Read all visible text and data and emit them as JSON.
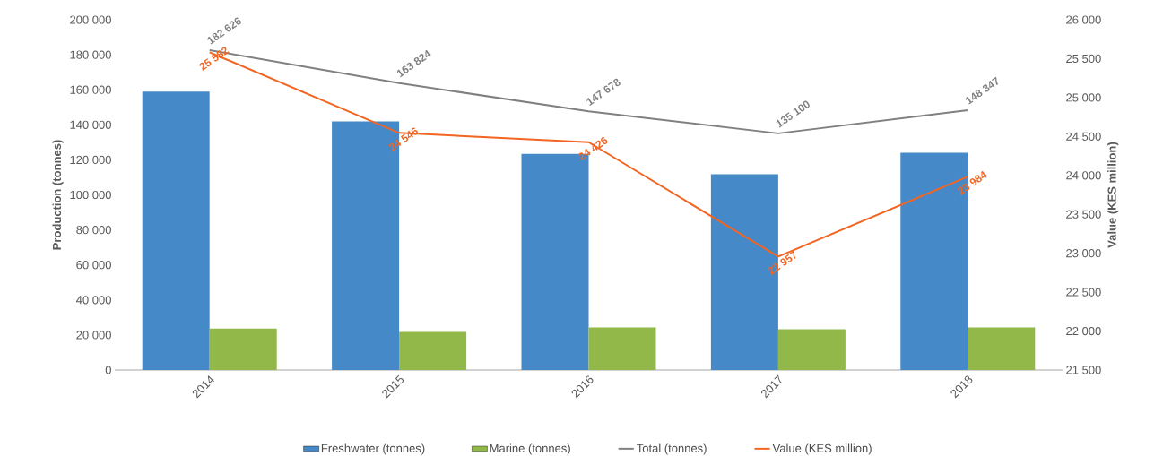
{
  "chart_data": {
    "type": "bar",
    "categories": [
      "2014",
      "2015",
      "2016",
      "2017",
      "2018"
    ],
    "ylabel": "Production (tonnes)",
    "y2label": "Value (KES million)",
    "ylim": [
      0,
      200000
    ],
    "yticks": [
      0,
      {
        "value": 20000,
        "label": "20 000"
      },
      {
        "value": 40000,
        "label": "40 000"
      },
      {
        "value": 60000,
        "label": "60 000"
      },
      {
        "value": 80000,
        "label": "80 000"
      },
      {
        "value": 100000,
        "label": "100 000"
      },
      {
        "value": 120000,
        "label": "120 000"
      },
      {
        "value": 140000,
        "label": "140 000"
      },
      {
        "value": 160000,
        "label": "160 000"
      },
      {
        "value": 180000,
        "label": "180 000"
      },
      {
        "value": 200000,
        "label": "200 000"
      }
    ],
    "y2lim": [
      21500,
      26000
    ],
    "y2ticks": [
      {
        "value": 21500,
        "label": "21 500"
      },
      {
        "value": 22000,
        "label": "22 000"
      },
      {
        "value": 22500,
        "label": "22 500"
      },
      {
        "value": 23000,
        "label": "23 000"
      },
      {
        "value": 23500,
        "label": "23 500"
      },
      {
        "value": 24000,
        "label": "24 000"
      },
      {
        "value": 24500,
        "label": "24 500"
      },
      {
        "value": 25000,
        "label": "25 000"
      },
      {
        "value": 25500,
        "label": "25 500"
      },
      {
        "value": 26000,
        "label": "26 000"
      }
    ],
    "legend": "bottom",
    "series": [
      {
        "name": "Freshwater (tonnes)",
        "color": "#4589c8",
        "values": [
          159000,
          142000,
          123400,
          111800,
          124000
        ]
      },
      {
        "name": "Marine (tonnes)",
        "color": "#92b84a",
        "values": [
          23600,
          21800,
          24300,
          23300,
          24300
        ]
      },
      {
        "name": "Total (tonnes)",
        "type": "line",
        "color": "#808080",
        "values": [
          182626,
          163824,
          147678,
          135100,
          148347
        ],
        "value_labels": [
          "182 626",
          "163 824",
          "147 678",
          "135 100",
          "148 347"
        ]
      },
      {
        "name": "Value (KES million)",
        "type": "line",
        "axis": "y2",
        "color": "#f26522",
        "values": [
          25582,
          24546,
          24426,
          22957,
          23984
        ],
        "value_labels": [
          "25 582",
          "24 546",
          "24 426",
          "22 957",
          "23 984"
        ]
      }
    ]
  }
}
